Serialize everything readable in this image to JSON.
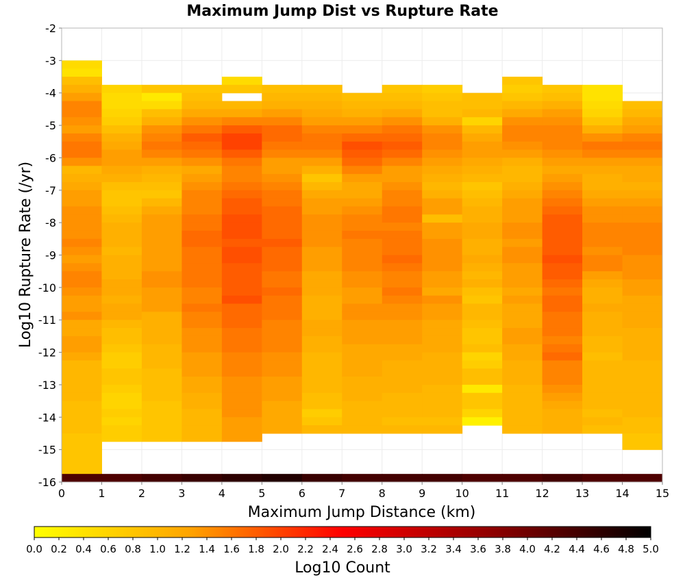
{
  "chart_data": {
    "type": "heatmap",
    "title": "Maximum Jump Dist vs Rupture Rate",
    "xlabel": "Maximum Jump Distance (km)",
    "ylabel": "Log10 Rupture Rate (/yr)",
    "xlim": [
      0,
      15
    ],
    "ylim": [
      -16,
      -2
    ],
    "x_ticks": [
      "0",
      "1",
      "2",
      "3",
      "4",
      "5",
      "6",
      "7",
      "8",
      "9",
      "10",
      "11",
      "12",
      "13",
      "14",
      "15"
    ],
    "y_ticks": [
      "-2",
      "-3",
      "-4",
      "-5",
      "-6",
      "-7",
      "-8",
      "-9",
      "-10",
      "-11",
      "-12",
      "-13",
      "-14",
      "-15",
      "-16"
    ],
    "x_bin_width": 1,
    "y_bin_height": 0.25,
    "colorbar": {
      "label": "Log10 Count",
      "range": [
        0,
        5
      ],
      "ticks": [
        "0.0",
        "0.2",
        "0.4",
        "0.6",
        "0.8",
        "1.0",
        "1.2",
        "1.4",
        "1.6",
        "1.8",
        "2.0",
        "2.2",
        "2.4",
        "2.6",
        "2.8",
        "3.0",
        "3.2",
        "3.4",
        "3.6",
        "3.8",
        "4.0",
        "4.2",
        "4.4",
        "4.6",
        "4.8",
        "5.0"
      ],
      "colors": [
        "#ffff00",
        "#ffa500",
        "#ff0000",
        "#8b0000",
        "#000000"
      ]
    },
    "column_top_y": [
      -3.0,
      -3.75,
      -3.75,
      -3.75,
      -3.5,
      -3.75,
      -3.75,
      -4.0,
      -3.75,
      -3.75,
      -4.0,
      -3.5,
      -3.75,
      -3.75,
      -4.25
    ],
    "column_levels": [
      [
        0.5,
        0.4,
        0.9,
        1.1,
        1.3,
        1.5,
        1.5,
        1.4,
        1.3,
        1.5,
        1.6,
        1.6,
        1.4,
        1.0,
        1.1,
        1.2,
        1.3,
        1.3,
        1.4,
        1.4,
        1.4,
        1.4,
        1.5,
        1.4,
        1.3,
        1.4,
        1.5,
        1.5,
        1.4,
        1.3,
        1.3,
        1.4,
        1.2,
        1.2,
        1.3,
        1.3,
        1.2,
        1.0,
        1.0,
        1.0,
        1.0,
        1.0,
        0.9,
        0.9,
        0.9,
        0.9,
        0.8,
        0.8,
        0.8,
        0.8,
        0.8,
        0.8
      ],
      [
        0.6,
        0.5,
        0.5,
        0.6,
        0.7,
        0.9,
        1.1,
        1.2,
        1.3,
        1.3,
        1.2,
        1.1,
        0.9,
        0.8,
        0.8,
        0.9,
        1.0,
        1.1,
        1.1,
        1.1,
        1.0,
        1.1,
        1.1,
        1.1,
        1.2,
        1.2,
        1.1,
        1.2,
        1.2,
        1.0,
        0.9,
        0.9,
        0.8,
        0.7,
        0.7,
        0.8,
        0.8,
        0.7,
        0.6,
        0.6,
        0.7,
        0.6,
        0.7,
        0.7
      ],
      [
        0.8,
        0.3,
        0.5,
        0.9,
        1.1,
        1.4,
        1.5,
        1.6,
        1.5,
        1.3,
        1.1,
        1.0,
        0.9,
        0.8,
        1.0,
        1.2,
        1.3,
        1.3,
        1.3,
        1.3,
        1.3,
        1.3,
        1.3,
        1.4,
        1.4,
        1.3,
        1.3,
        1.3,
        1.1,
        1.1,
        1.1,
        1.1,
        1.0,
        1.0,
        1.0,
        0.9,
        0.9,
        0.9,
        0.9,
        0.8,
        0.8,
        0.8,
        0.8,
        0.8
      ],
      [
        0.8,
        0.9,
        1.0,
        1.2,
        1.4,
        1.6,
        1.8,
        1.7,
        1.6,
        1.4,
        1.2,
        1.3,
        1.4,
        1.5,
        1.5,
        1.5,
        1.6,
        1.6,
        1.7,
        1.7,
        1.6,
        1.6,
        1.6,
        1.6,
        1.6,
        1.5,
        1.5,
        1.6,
        1.5,
        1.5,
        1.4,
        1.4,
        1.4,
        1.3,
        1.3,
        1.3,
        1.2,
        1.2,
        1.1,
        1.1,
        1.0,
        1.0,
        1.0,
        1.0
      ],
      [
        0.5,
        0.8,
        -1,
        1.0,
        1.2,
        1.5,
        1.8,
        2.0,
        2.0,
        1.8,
        1.6,
        1.5,
        1.5,
        1.6,
        1.7,
        1.8,
        1.8,
        1.9,
        1.9,
        1.9,
        1.8,
        1.9,
        1.9,
        1.8,
        1.8,
        1.8,
        1.8,
        1.9,
        1.7,
        1.7,
        1.7,
        1.6,
        1.6,
        1.6,
        1.5,
        1.5,
        1.5,
        1.4,
        1.4,
        1.4,
        1.4,
        1.4,
        1.3,
        1.3,
        1.3
      ],
      [
        0.9,
        1.0,
        1.1,
        1.3,
        1.5,
        1.7,
        1.7,
        1.6,
        1.5,
        1.3,
        1.3,
        1.4,
        1.5,
        1.6,
        1.6,
        1.7,
        1.7,
        1.7,
        1.7,
        1.8,
        1.7,
        1.7,
        1.7,
        1.6,
        1.6,
        1.7,
        1.6,
        1.6,
        1.6,
        1.5,
        1.5,
        1.5,
        1.5,
        1.4,
        1.4,
        1.4,
        1.3,
        1.3,
        1.3,
        1.2,
        1.2,
        1.2,
        1.2
      ],
      [
        0.9,
        1.0,
        1.1,
        1.2,
        1.3,
        1.5,
        1.6,
        1.6,
        1.5,
        1.3,
        1.1,
        0.8,
        1.0,
        1.2,
        1.3,
        1.3,
        1.4,
        1.4,
        1.4,
        1.4,
        1.3,
        1.3,
        1.3,
        1.2,
        1.2,
        1.2,
        1.1,
        1.1,
        1.1,
        1.2,
        1.2,
        1.1,
        1.1,
        1.0,
        1.0,
        1.0,
        1.0,
        1.0,
        0.9,
        0.9,
        0.7,
        0.8,
        1.0
      ],
      [
        0.9,
        1.0,
        1.1,
        1.3,
        1.5,
        1.7,
        1.9,
        1.8,
        1.7,
        1.5,
        1.3,
        1.2,
        1.2,
        1.3,
        1.4,
        1.5,
        1.5,
        1.6,
        1.5,
        1.5,
        1.5,
        1.5,
        1.4,
        1.4,
        1.3,
        1.3,
        1.4,
        1.4,
        1.3,
        1.3,
        1.3,
        1.2,
        1.2,
        1.2,
        1.2,
        1.1,
        1.1,
        1.1,
        1.0,
        1.0,
        1.0,
        1.0
      ],
      [
        0.8,
        0.9,
        1.0,
        1.2,
        1.4,
        1.6,
        1.7,
        1.8,
        1.7,
        1.5,
        1.3,
        1.3,
        1.4,
        1.5,
        1.5,
        1.6,
        1.6,
        1.5,
        1.6,
        1.6,
        1.6,
        1.7,
        1.6,
        1.5,
        1.5,
        1.6,
        1.5,
        1.4,
        1.4,
        1.3,
        1.3,
        1.3,
        1.2,
        1.2,
        1.1,
        1.1,
        1.1,
        1.1,
        1.0,
        1.0,
        1.0,
        0.9,
        1.0
      ],
      [
        0.7,
        0.8,
        0.9,
        0.9,
        1.1,
        1.4,
        1.5,
        1.5,
        1.4,
        1.3,
        1.2,
        1.1,
        1.0,
        1.1,
        1.3,
        1.3,
        0.9,
        1.3,
        1.3,
        1.4,
        1.4,
        1.4,
        1.4,
        1.3,
        1.3,
        1.2,
        1.4,
        1.3,
        1.3,
        1.2,
        1.2,
        1.2,
        1.2,
        1.1,
        1.1,
        1.1,
        1.1,
        1.0,
        1.0,
        1.0,
        1.0,
        0.9,
        1.0
      ],
      [
        0.9,
        0.9,
        1.0,
        0.6,
        1.0,
        1.2,
        1.3,
        1.3,
        1.2,
        1.1,
        1.0,
        0.8,
        0.9,
        1.0,
        1.1,
        1.1,
        1.2,
        1.2,
        1.1,
        1.1,
        1.2,
        1.1,
        1.0,
        1.1,
        0.9,
        0.8,
        1.0,
        1.0,
        0.9,
        0.8,
        0.8,
        0.9,
        0.6,
        0.7,
        0.9,
        0.9,
        0.3,
        0.8,
        0.8,
        0.6,
        0.2
      ],
      [
        0.8,
        0.7,
        0.8,
        1.0,
        1.2,
        1.4,
        1.5,
        1.5,
        1.4,
        1.3,
        1.1,
        1.0,
        1.0,
        1.1,
        1.2,
        1.3,
        1.3,
        1.3,
        1.4,
        1.4,
        1.3,
        1.4,
        1.4,
        1.3,
        1.3,
        1.3,
        1.2,
        1.3,
        1.2,
        1.2,
        1.2,
        1.3,
        1.3,
        1.2,
        1.2,
        1.1,
        1.1,
        1.1,
        1.0,
        1.0,
        1.0,
        1.0,
        1.0,
        1.0
      ],
      [
        0.8,
        0.9,
        1.1,
        1.3,
        1.4,
        1.5,
        1.5,
        1.5,
        1.4,
        1.3,
        1.2,
        1.3,
        1.4,
        1.5,
        1.6,
        1.7,
        1.8,
        1.8,
        1.8,
        1.8,
        1.8,
        1.9,
        1.8,
        1.8,
        1.7,
        1.6,
        1.7,
        1.7,
        1.6,
        1.6,
        1.6,
        1.5,
        1.6,
        1.7,
        1.5,
        1.5,
        1.5,
        1.4,
        1.3,
        1.2,
        1.1,
        1.1,
        1.1
      ],
      [
        0.4,
        0.4,
        0.5,
        0.6,
        0.8,
        1.1,
        1.4,
        1.6,
        1.5,
        1.3,
        1.2,
        1.1,
        1.1,
        1.2,
        1.3,
        1.4,
        1.4,
        1.5,
        1.5,
        1.5,
        1.4,
        1.5,
        1.5,
        1.3,
        1.2,
        1.1,
        1.1,
        1.2,
        1.1,
        1.1,
        1.1,
        1.0,
        1.0,
        0.9,
        1.0,
        1.0,
        1.0,
        1.0,
        1.0,
        1.0,
        0.9,
        1.0,
        0.9
      ],
      [
        0.9,
        1.0,
        1.2,
        1.3,
        1.5,
        1.6,
        1.5,
        1.3,
        1.2,
        1.2,
        1.1,
        1.2,
        1.3,
        1.4,
        1.4,
        1.5,
        1.5,
        1.5,
        1.5,
        1.4,
        1.4,
        1.4,
        1.3,
        1.3,
        1.2,
        1.2,
        1.2,
        1.2,
        1.1,
        1.1,
        1.1,
        1.1,
        1.0,
        1.0,
        1.0,
        1.0,
        1.0,
        1.0,
        1.0,
        0.9,
        0.9,
        0.8,
        0.8
      ]
    ],
    "bottom_row_levels": [
      4.3,
      4.3,
      4.4,
      4.5,
      4.6,
      4.7,
      4.5,
      4.4,
      4.4,
      4.4,
      4.3,
      4.3,
      4.4,
      4.3,
      4.3
    ],
    "grid": true
  }
}
